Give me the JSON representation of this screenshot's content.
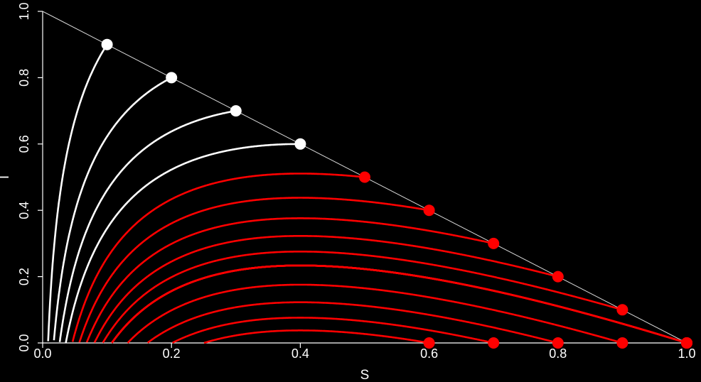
{
  "chart_data": {
    "type": "line",
    "title": "",
    "xlabel": "S",
    "ylabel": "I",
    "xlim": [
      0,
      1
    ],
    "ylim": [
      0,
      1
    ],
    "x_ticks": [
      "0.0",
      "0.2",
      "0.4",
      "0.6",
      "0.8",
      "1.0"
    ],
    "y_ticks": [
      "0.0",
      "0.2",
      "0.4",
      "0.6",
      "0.8",
      "1.0"
    ],
    "grid": false,
    "legend": "none",
    "colors": {
      "background": "#000000",
      "axis": "#ffffff",
      "boundary_line": "#d9d9d9",
      "epidemic_threshold_above": "#ffffff",
      "epidemic_threshold_below": "#ff0000"
    },
    "boundary_line": {
      "x": [
        0,
        1
      ],
      "y": [
        1,
        0
      ]
    },
    "series": [
      {
        "group": "white",
        "color": "#ffffff",
        "start": [
          0.1,
          0.9
        ]
      },
      {
        "group": "white",
        "color": "#ffffff",
        "start": [
          0.2,
          0.8
        ]
      },
      {
        "group": "white",
        "color": "#ffffff",
        "start": [
          0.3,
          0.7
        ]
      },
      {
        "group": "white",
        "color": "#ffffff",
        "start": [
          0.4,
          0.6
        ]
      },
      {
        "group": "red",
        "color": "#ff0000",
        "start": [
          0.5,
          0.5
        ]
      },
      {
        "group": "red",
        "color": "#ff0000",
        "start": [
          0.6,
          0.4
        ]
      },
      {
        "group": "red",
        "color": "#ff0000",
        "start": [
          0.7,
          0.3
        ]
      },
      {
        "group": "red",
        "color": "#ff0000",
        "start": [
          0.8,
          0.2
        ]
      },
      {
        "group": "red",
        "color": "#ff0000",
        "start": [
          0.9,
          0.1
        ]
      },
      {
        "group": "red",
        "color": "#ff0000",
        "start": [
          1.0,
          0.0
        ]
      },
      {
        "group": "red",
        "color": "#ff0000",
        "start": [
          1.0,
          0.0
        ]
      },
      {
        "group": "red",
        "color": "#ff0000",
        "start": [
          1.0,
          0.0
        ]
      },
      {
        "group": "red",
        "color": "#ff0000",
        "start": [
          1.0,
          0.0
        ]
      },
      {
        "group": "red",
        "color": "#ff0000",
        "start": [
          1.0,
          0.0
        ]
      },
      {
        "group": "red",
        "color": "#ff0000",
        "start": [
          1.0,
          0.0
        ]
      },
      {
        "group": "red",
        "color": "#ff0000",
        "start": [
          0.9,
          0.0
        ]
      },
      {
        "group": "red",
        "color": "#ff0000",
        "start": [
          0.8,
          0.0
        ]
      },
      {
        "group": "red",
        "color": "#ff0000",
        "start": [
          0.7,
          0.0
        ]
      },
      {
        "group": "red",
        "color": "#ff0000",
        "start": [
          0.6,
          0.0
        ]
      }
    ],
    "curve_samples": [
      {
        "S": [
          0.1,
          0.0857,
          0.0714,
          0.0572,
          0.0429,
          0.0286,
          0.0143,
          0.0
        ],
        "I": [
          0.9,
          0.8,
          0.6,
          0.45,
          0.3,
          0.18,
          0.08,
          0.0
        ]
      }
    ]
  }
}
